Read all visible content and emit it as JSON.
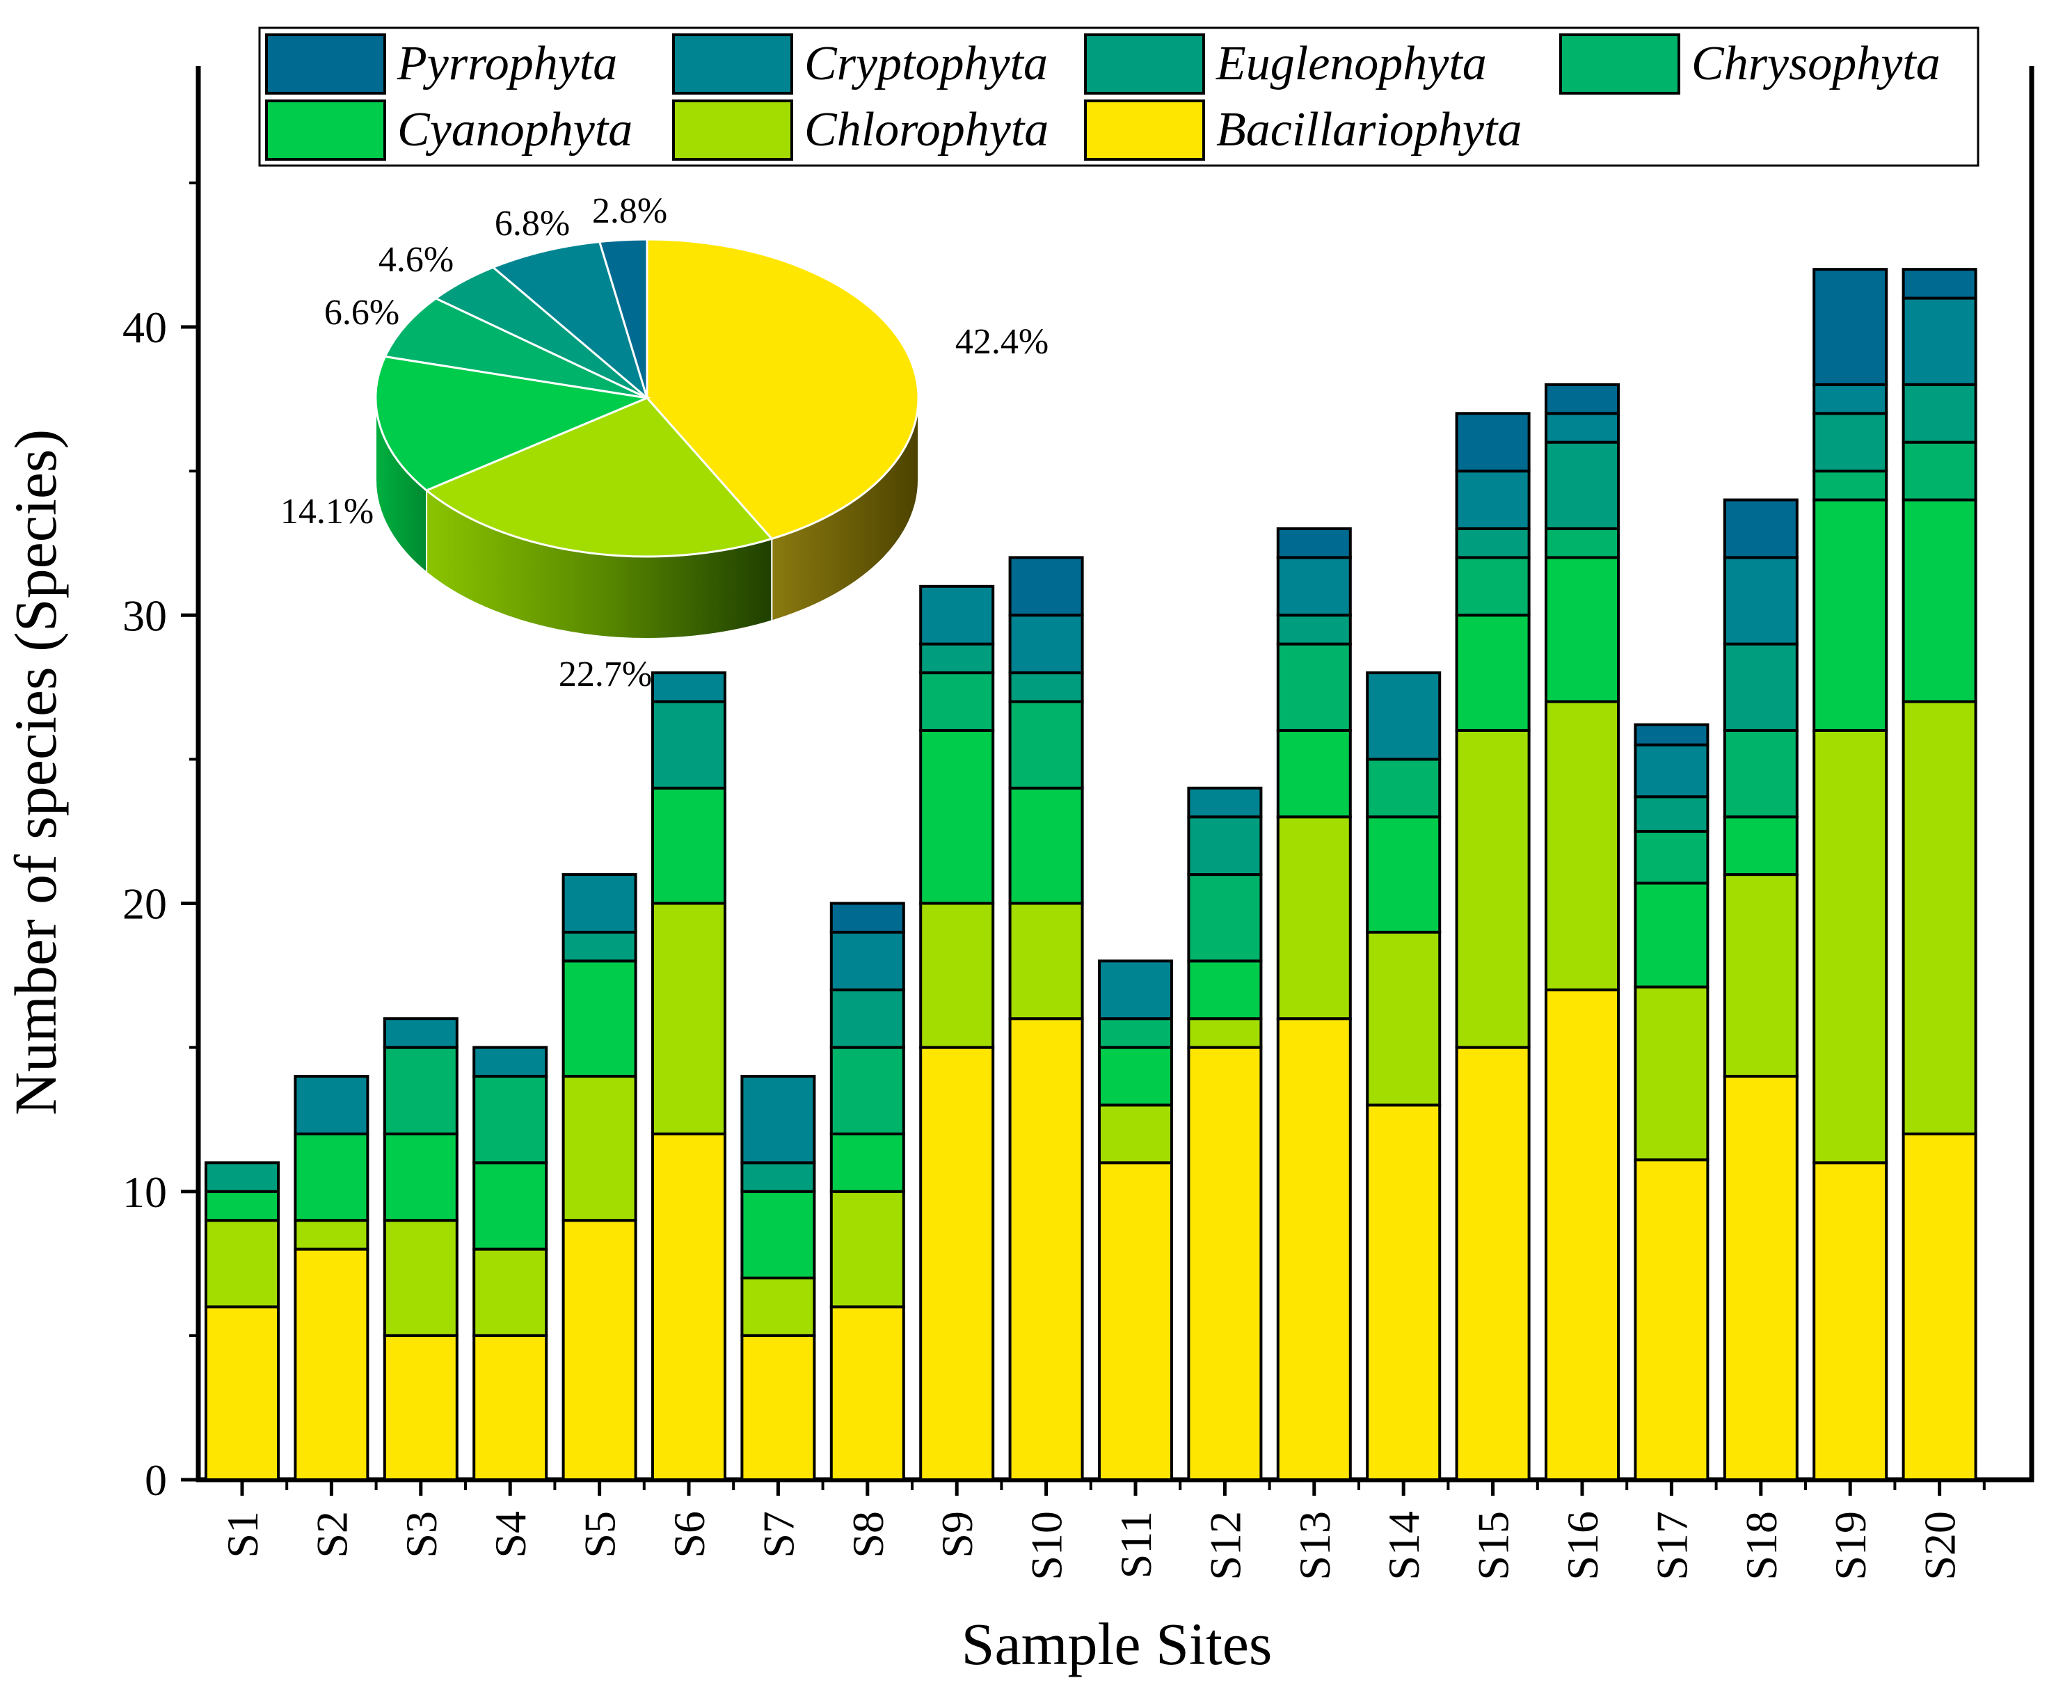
{
  "chart_data": [
    {
      "type": "bar",
      "stacked": true,
      "xlabel": "Sample Sites",
      "ylabel": "Number of species (Species)",
      "ylim": [
        0,
        46
      ],
      "yticks": [
        0,
        10,
        20,
        30,
        40
      ],
      "grid": false,
      "legend_position": "top",
      "categories": [
        "S1",
        "S2",
        "S3",
        "S4",
        "S5",
        "S6",
        "S7",
        "S8",
        "S9",
        "S10",
        "S11",
        "S12",
        "S13",
        "S14",
        "S15",
        "S16",
        "S17",
        "S18",
        "S19",
        "S20"
      ],
      "series": [
        {
          "name": "Bacillariophyta",
          "color": "#ffe600",
          "values": [
            6,
            8,
            5,
            5,
            9,
            12,
            5,
            6,
            15,
            16,
            11,
            15,
            16,
            13,
            15,
            17,
            11.1,
            14,
            11,
            12
          ]
        },
        {
          "name": "Chlorophyta",
          "color": "#a3dd00",
          "values": [
            3,
            1,
            4,
            3,
            5,
            8,
            2,
            4,
            5,
            4,
            2,
            1,
            7,
            6,
            11,
            10,
            6,
            7,
            15,
            15
          ]
        },
        {
          "name": "Cyanophyta",
          "color": "#00cc4c",
          "values": [
            1,
            3,
            3,
            3,
            4,
            4,
            3,
            2,
            6,
            4,
            2,
            2,
            3,
            4,
            4,
            5,
            3.6,
            2,
            8,
            7
          ]
        },
        {
          "name": "Chrysophyta",
          "color": "#00b36b",
          "values": [
            0,
            0,
            3,
            3,
            0,
            0,
            0,
            3,
            2,
            3,
            1,
            3,
            3,
            2,
            2,
            1,
            1.8,
            3,
            1,
            2
          ]
        },
        {
          "name": "Euglenophyta",
          "color": "#009e7e",
          "values": [
            1,
            0,
            0,
            0,
            1,
            3,
            1,
            2,
            1,
            1,
            0,
            2,
            1,
            0,
            1,
            3,
            1.2,
            3,
            2,
            2
          ]
        },
        {
          "name": "Cryptophyta",
          "color": "#008492",
          "values": [
            0,
            2,
            1,
            1,
            2,
            1,
            3,
            2,
            2,
            2,
            2,
            1,
            2,
            3,
            2,
            1,
            1.8,
            3,
            1,
            3
          ]
        },
        {
          "name": "Pyrrophyta",
          "color": "#006a91",
          "values": [
            0,
            0,
            0,
            0,
            0,
            0,
            0,
            1,
            0,
            2,
            0,
            0,
            1,
            0,
            2,
            1,
            0.7,
            2,
            4,
            1
          ]
        }
      ]
    },
    {
      "type": "pie",
      "style": "3d",
      "labels": [
        "Bacillariophyta",
        "Chlorophyta",
        "Cyanophyta",
        "Chrysophyta",
        "Euglenophyta",
        "Cryptophyta",
        "Pyrrophyta"
      ],
      "values": [
        42.4,
        22.7,
        14.1,
        6.6,
        4.6,
        6.8,
        2.8
      ],
      "value_labels": [
        "42.4%",
        "22.7%",
        "14.1%",
        "6.6%",
        "4.6%",
        "6.8%",
        "2.8%"
      ],
      "colors": [
        "#ffe600",
        "#a3dd00",
        "#00cc4c",
        "#00b36b",
        "#009e7e",
        "#008492",
        "#006a91"
      ]
    }
  ],
  "legend": {
    "rows": [
      [
        "Pyrrophyta",
        "Cryptophyta",
        "Euglenophyta",
        "Chrysophyta"
      ],
      [
        "Cyanophyta",
        "Chlorophyta",
        "Bacillariophyta"
      ]
    ]
  }
}
